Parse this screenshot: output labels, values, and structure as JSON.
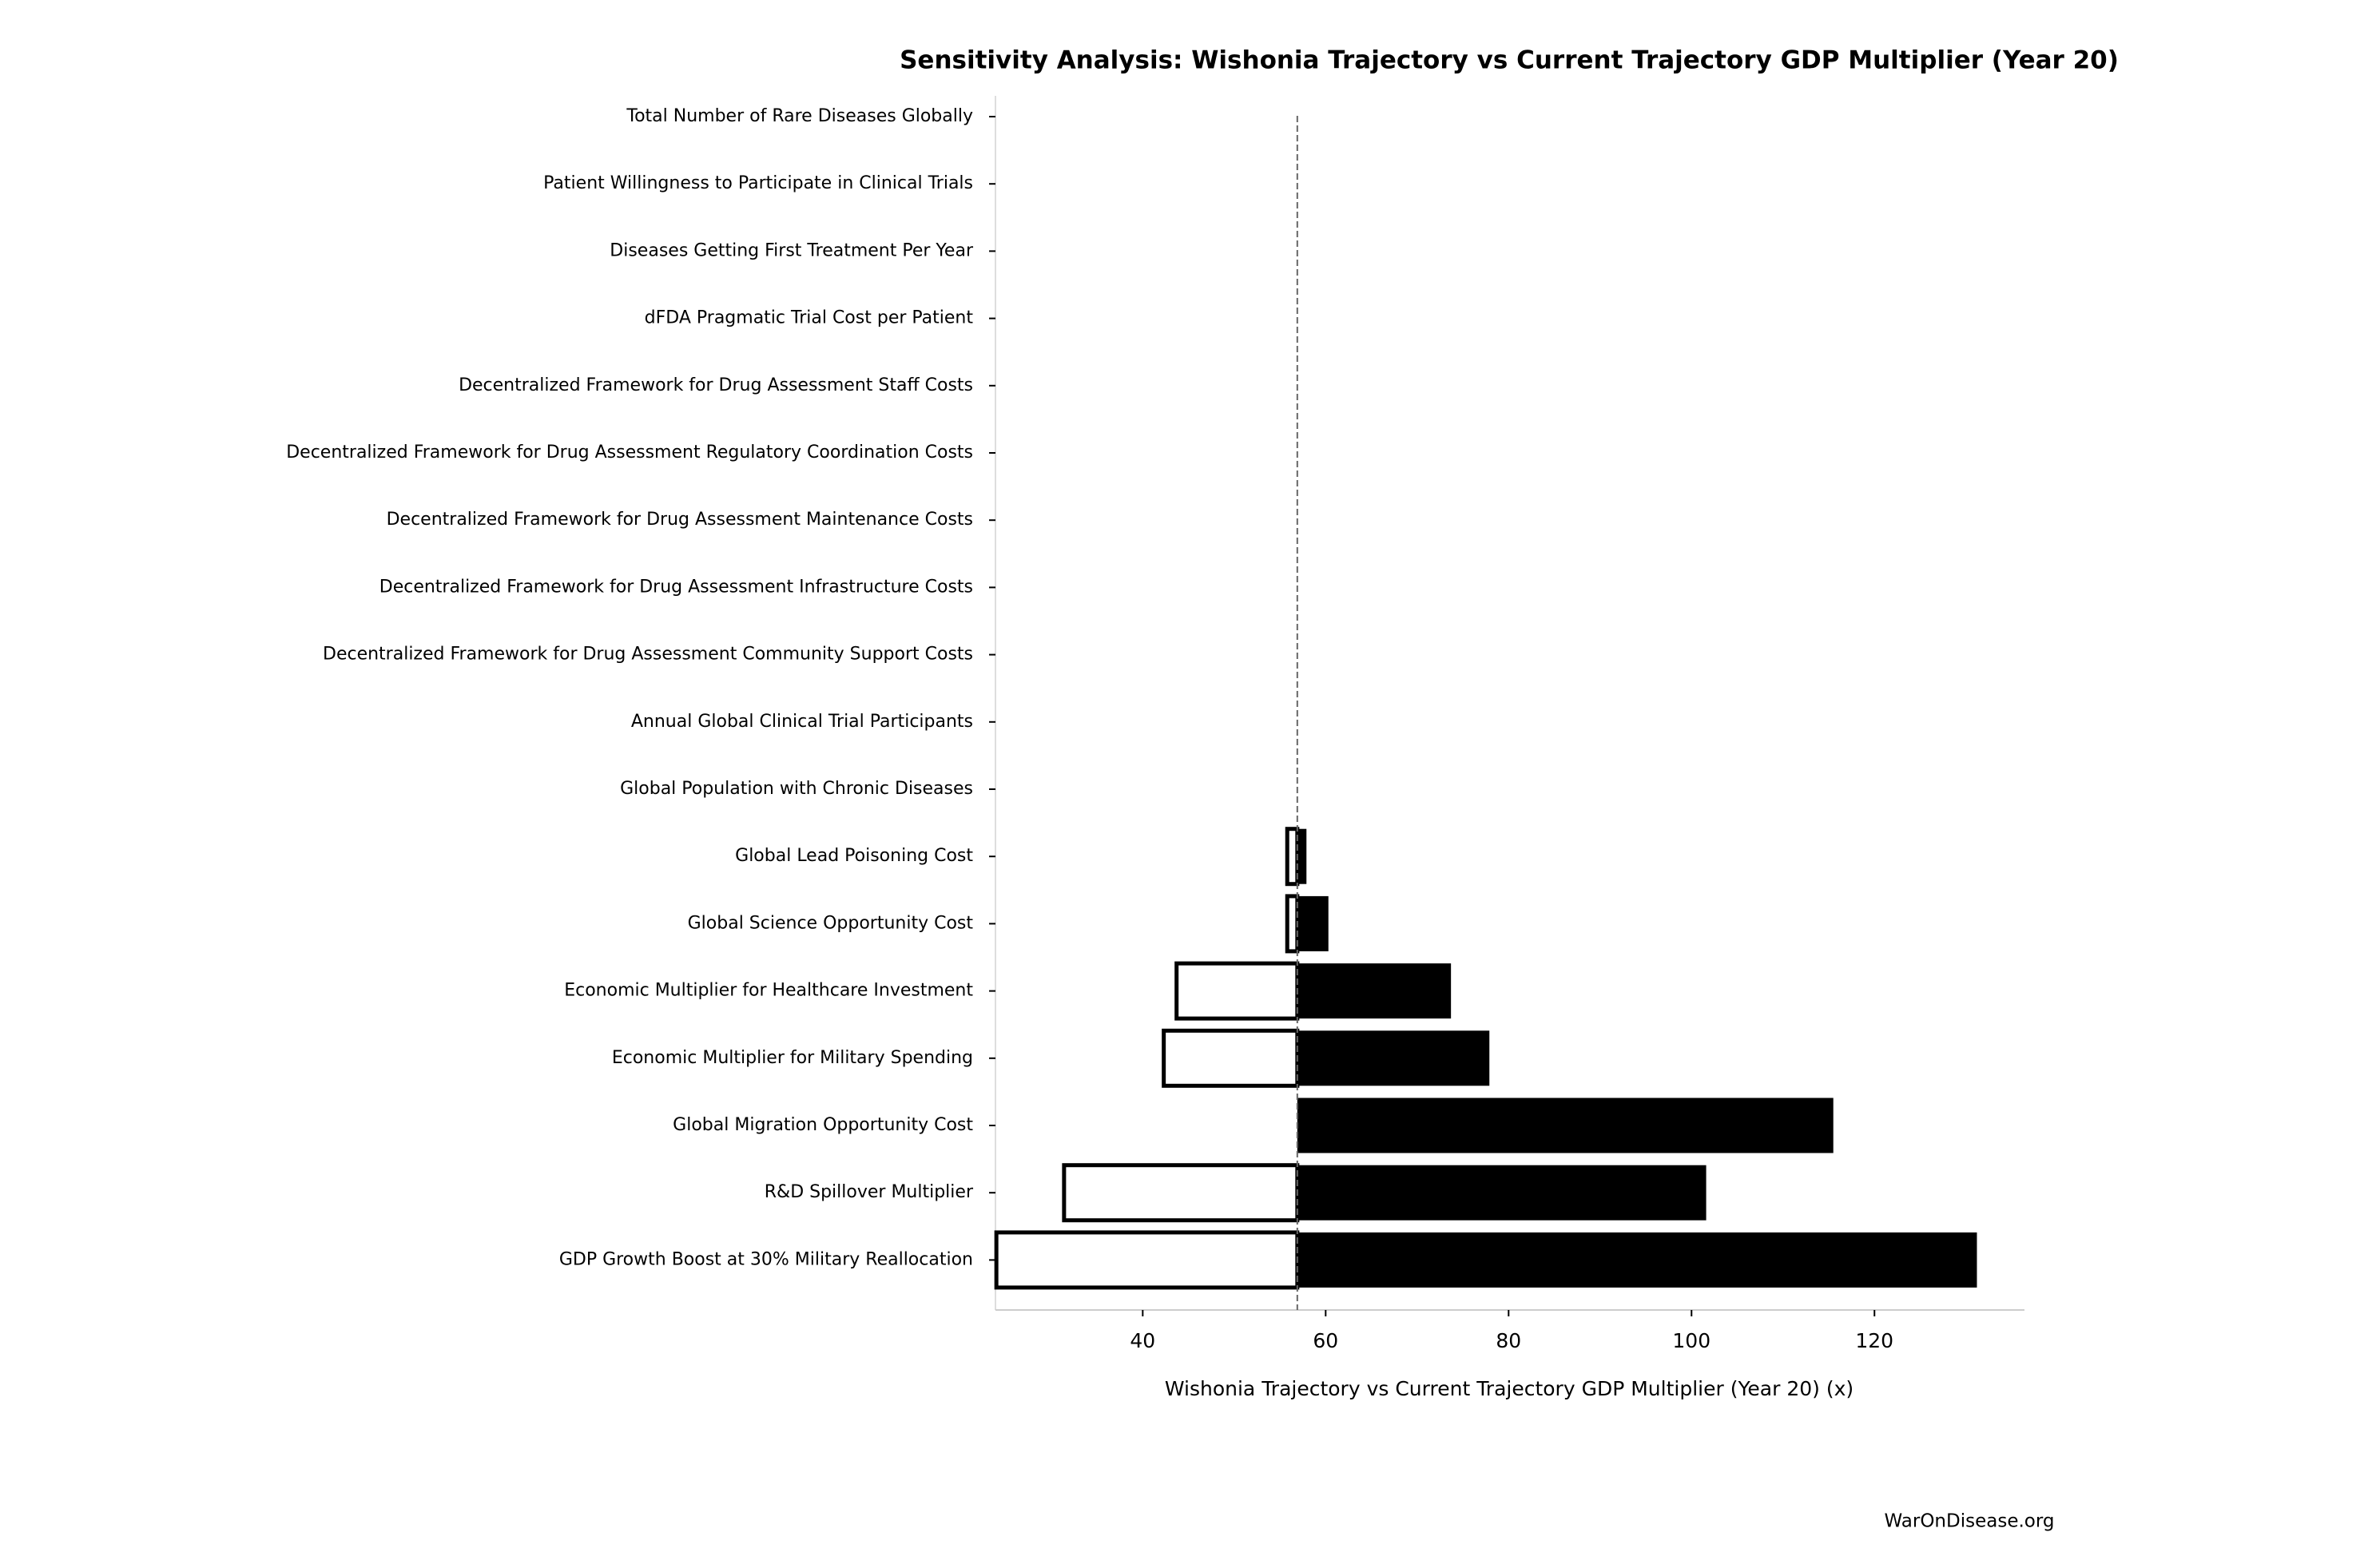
{
  "chart_data": {
    "type": "tornado",
    "title": "Sensitivity Analysis: Wishonia Trajectory vs Current Trajectory GDP Multiplier (Year 20)",
    "x_label": "Wishonia Trajectory vs Current Trajectory GDP Multiplier (Year 20) (x)",
    "footer": "WarOnDisease.org",
    "categories": [
      "Total Number of Rare Diseases Globally",
      "Patient Willingness to Participate in Clinical Trials",
      "Diseases Getting First Treatment Per Year",
      "dFDA Pragmatic Trial Cost per Patient",
      "Decentralized Framework for Drug Assessment Staff Costs",
      "Decentralized Framework for Drug Assessment Regulatory Coordination Costs",
      "Decentralized Framework for Drug Assessment Maintenance Costs",
      "Decentralized Framework for Drug Assessment Infrastructure Costs",
      "Decentralized Framework for Drug Assessment Community Support Costs",
      "Annual Global Clinical Trial Participants",
      "Global Population with Chronic Diseases",
      "Global Lead Poisoning Cost",
      "Global Science Opportunity Cost",
      "Economic Multiplier for Healthcare Investment",
      "Economic Multiplier for Military Spending",
      "Global Migration Opportunity Cost",
      "R&D Spillover Multiplier",
      "GDP Growth Boost at 30% Military Reallocation"
    ],
    "baseline": 56.9,
    "series": [
      {
        "color": "#ffffff",
        "values": [
          56.9,
          56.9,
          56.9,
          56.9,
          56.9,
          56.9,
          56.9,
          56.9,
          56.9,
          56.9,
          56.9,
          55.8,
          55.8,
          43.7,
          42.3,
          56.9,
          31.4,
          24.0
        ]
      },
      {
        "color": "#000000",
        "values": [
          56.9,
          56.9,
          56.9,
          56.9,
          56.9,
          56.9,
          56.9,
          56.9,
          56.9,
          56.9,
          56.9,
          57.9,
          60.3,
          73.7,
          77.9,
          115.5,
          101.6,
          131.2
        ]
      }
    ],
    "xlim": [
      23.9,
      136.4
    ],
    "xticks": [
      40,
      60,
      80,
      100,
      120
    ]
  }
}
